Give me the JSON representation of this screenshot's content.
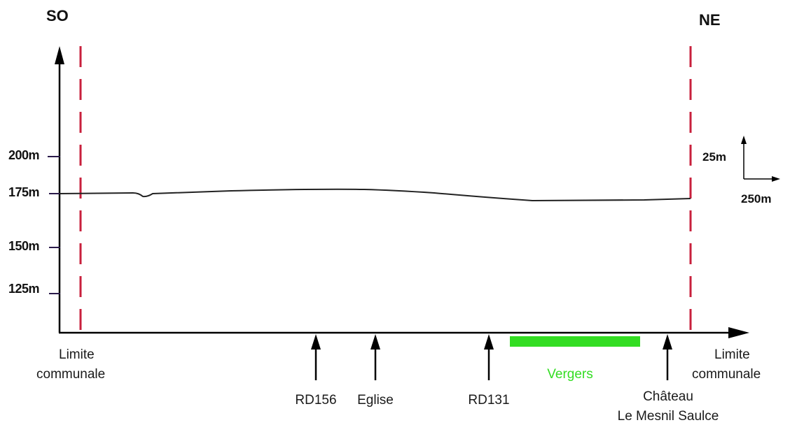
{
  "orientation": {
    "left": "SO",
    "right": "NE"
  },
  "y_axis": {
    "ticks": [
      {
        "label": "200m",
        "value": 200
      },
      {
        "label": "175m",
        "value": 175
      },
      {
        "label": "150m",
        "value": 150
      },
      {
        "label": "125m",
        "value": 125
      }
    ]
  },
  "scale_indicator": {
    "vertical": "25m",
    "horizontal": "250m"
  },
  "boundaries": {
    "left": {
      "label_line1": "Limite",
      "label_line2": "communale"
    },
    "right": {
      "label_line1": "Limite",
      "label_line2": "communale"
    }
  },
  "landmarks": [
    {
      "label_line1": "RD156",
      "label_line2": ""
    },
    {
      "label_line1": "Eglise",
      "label_line2": ""
    },
    {
      "label_line1": "RD131",
      "label_line2": ""
    },
    {
      "label_line1": "Château",
      "label_line2": "Le Mesnil Saulce"
    }
  ],
  "zones": [
    {
      "label": "Vergers",
      "color": "#33dd22"
    }
  ],
  "colors": {
    "boundary": "#c8203c",
    "profile": "#222222",
    "axis": "#000000",
    "tick": "#2a1a4a"
  }
}
